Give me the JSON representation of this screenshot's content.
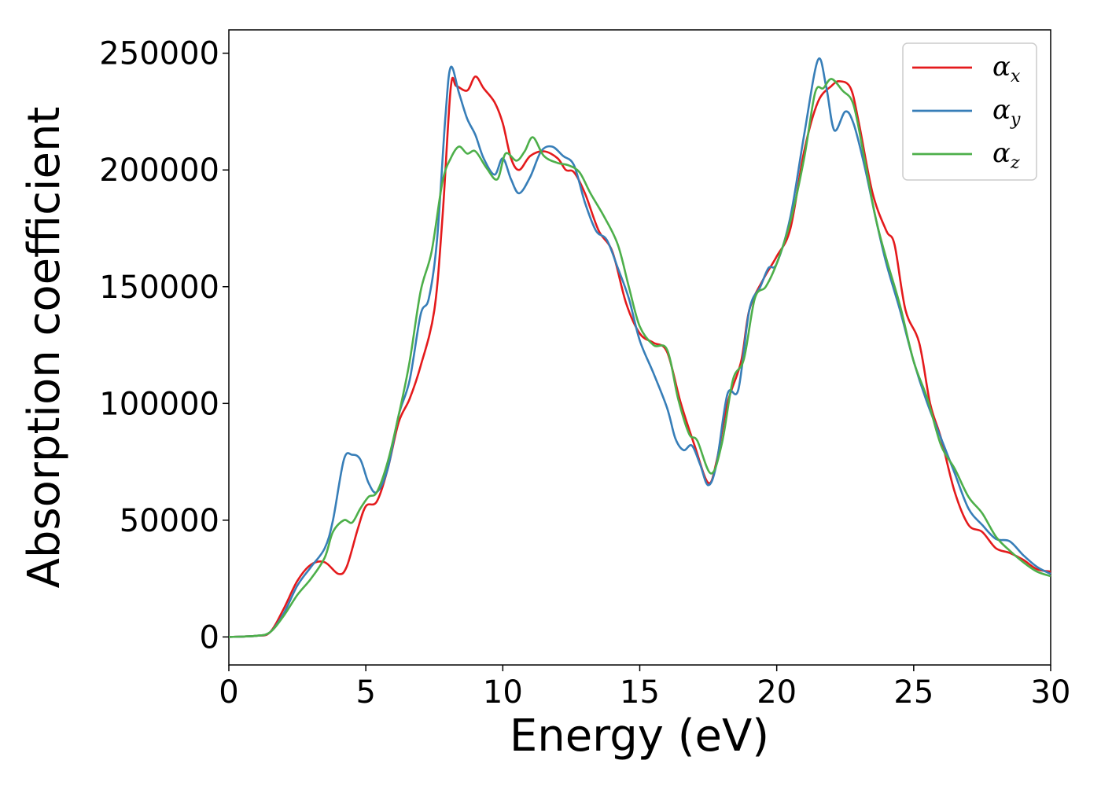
{
  "chart_data": {
    "type": "line",
    "title": "",
    "xlabel": "Energy (eV)",
    "ylabel": "Absorption coefficient",
    "xlim": [
      0,
      30
    ],
    "ylim": [
      -12000,
      260000
    ],
    "xticks": [
      0,
      5,
      10,
      15,
      20,
      25,
      30
    ],
    "xtick_labels": [
      "0",
      "5",
      "10",
      "15",
      "20",
      "25",
      "30"
    ],
    "yticks": [
      0,
      50000,
      100000,
      150000,
      200000,
      250000
    ],
    "ytick_labels": [
      "0",
      "50000",
      "100000",
      "150000",
      "200000",
      "250000"
    ],
    "grid": false,
    "legend_position": "top-right",
    "series": [
      {
        "name": "α",
        "subscript": "x",
        "color": "#e41a1c",
        "points": [
          [
            0,
            0
          ],
          [
            1,
            500
          ],
          [
            1.5,
            2000
          ],
          [
            2,
            12000
          ],
          [
            2.5,
            24000
          ],
          [
            3,
            31000
          ],
          [
            3.5,
            32000
          ],
          [
            4,
            27000
          ],
          [
            4.3,
            30000
          ],
          [
            4.7,
            46000
          ],
          [
            5,
            56000
          ],
          [
            5.4,
            58000
          ],
          [
            5.8,
            72000
          ],
          [
            6.2,
            92000
          ],
          [
            6.6,
            102000
          ],
          [
            7,
            116000
          ],
          [
            7.5,
            140000
          ],
          [
            7.8,
            180000
          ],
          [
            8.1,
            235000
          ],
          [
            8.3,
            236000
          ],
          [
            8.7,
            234000
          ],
          [
            9,
            240000
          ],
          [
            9.3,
            235000
          ],
          [
            9.7,
            229000
          ],
          [
            10,
            220000
          ],
          [
            10.3,
            205000
          ],
          [
            10.6,
            200000
          ],
          [
            11,
            206000
          ],
          [
            11.5,
            208000
          ],
          [
            12,
            205000
          ],
          [
            12.3,
            200000
          ],
          [
            12.6,
            199000
          ],
          [
            13,
            190000
          ],
          [
            13.5,
            174000
          ],
          [
            14,
            165000
          ],
          [
            14.5,
            143000
          ],
          [
            15,
            130000
          ],
          [
            15.5,
            126000
          ],
          [
            16,
            122000
          ],
          [
            16.5,
            100000
          ],
          [
            17,
            82000
          ],
          [
            17.5,
            66000
          ],
          [
            17.8,
            75000
          ],
          [
            18.2,
            100000
          ],
          [
            18.7,
            118000
          ],
          [
            19,
            140000
          ],
          [
            19.5,
            153000
          ],
          [
            20,
            163000
          ],
          [
            20.5,
            175000
          ],
          [
            21,
            208000
          ],
          [
            21.5,
            229000
          ],
          [
            22,
            236000
          ],
          [
            22.3,
            238000
          ],
          [
            22.7,
            235000
          ],
          [
            23,
            220000
          ],
          [
            23.5,
            190000
          ],
          [
            24,
            174000
          ],
          [
            24.3,
            168000
          ],
          [
            24.7,
            140000
          ],
          [
            25.2,
            126000
          ],
          [
            25.6,
            100000
          ],
          [
            26,
            85000
          ],
          [
            26.5,
            62000
          ],
          [
            27,
            48000
          ],
          [
            27.5,
            45000
          ],
          [
            28,
            38000
          ],
          [
            28.5,
            36000
          ],
          [
            29,
            33000
          ],
          [
            29.5,
            29000
          ],
          [
            30,
            28000
          ]
        ]
      },
      {
        "name": "α",
        "subscript": "y",
        "color": "#377eb8",
        "points": [
          [
            0,
            0
          ],
          [
            1,
            500
          ],
          [
            1.5,
            2000
          ],
          [
            2,
            10000
          ],
          [
            2.5,
            22000
          ],
          [
            3,
            30000
          ],
          [
            3.5,
            38000
          ],
          [
            3.8,
            50000
          ],
          [
            4.2,
            76000
          ],
          [
            4.5,
            78000
          ],
          [
            4.8,
            76000
          ],
          [
            5.1,
            66000
          ],
          [
            5.4,
            62000
          ],
          [
            5.8,
            72000
          ],
          [
            6.2,
            95000
          ],
          [
            6.6,
            110000
          ],
          [
            7,
            138000
          ],
          [
            7.3,
            145000
          ],
          [
            7.6,
            170000
          ],
          [
            7.9,
            222000
          ],
          [
            8.1,
            244000
          ],
          [
            8.4,
            233000
          ],
          [
            8.7,
            222000
          ],
          [
            9,
            215000
          ],
          [
            9.3,
            205000
          ],
          [
            9.7,
            198000
          ],
          [
            10,
            205000
          ],
          [
            10.3,
            196000
          ],
          [
            10.6,
            190000
          ],
          [
            11,
            197000
          ],
          [
            11.4,
            208000
          ],
          [
            11.8,
            210000
          ],
          [
            12.2,
            206000
          ],
          [
            12.6,
            202000
          ],
          [
            13,
            186000
          ],
          [
            13.4,
            174000
          ],
          [
            13.8,
            170000
          ],
          [
            14.2,
            158000
          ],
          [
            14.6,
            145000
          ],
          [
            15,
            127000
          ],
          [
            15.5,
            113000
          ],
          [
            16,
            98000
          ],
          [
            16.3,
            85000
          ],
          [
            16.6,
            80000
          ],
          [
            16.9,
            82000
          ],
          [
            17.2,
            74000
          ],
          [
            17.5,
            65000
          ],
          [
            17.8,
            74000
          ],
          [
            18.2,
            104000
          ],
          [
            18.6,
            106000
          ],
          [
            19,
            140000
          ],
          [
            19.4,
            150000
          ],
          [
            19.7,
            158000
          ],
          [
            20,
            160000
          ],
          [
            20.5,
            180000
          ],
          [
            21,
            215000
          ],
          [
            21.5,
            247000
          ],
          [
            21.8,
            236000
          ],
          [
            22.1,
            217000
          ],
          [
            22.5,
            225000
          ],
          [
            22.8,
            220000
          ],
          [
            23.2,
            202000
          ],
          [
            23.6,
            180000
          ],
          [
            24,
            160000
          ],
          [
            24.5,
            140000
          ],
          [
            25,
            118000
          ],
          [
            25.5,
            100000
          ],
          [
            26,
            85000
          ],
          [
            26.5,
            70000
          ],
          [
            27,
            55000
          ],
          [
            27.5,
            48000
          ],
          [
            28,
            42000
          ],
          [
            28.5,
            41000
          ],
          [
            29,
            35000
          ],
          [
            29.5,
            30000
          ],
          [
            30,
            27000
          ]
        ]
      },
      {
        "name": "α",
        "subscript": "z",
        "color": "#4daf4a",
        "points": [
          [
            0,
            0
          ],
          [
            1,
            500
          ],
          [
            1.5,
            2000
          ],
          [
            2,
            9000
          ],
          [
            2.5,
            18000
          ],
          [
            3,
            25000
          ],
          [
            3.5,
            34000
          ],
          [
            3.8,
            45000
          ],
          [
            4.2,
            50000
          ],
          [
            4.5,
            49000
          ],
          [
            4.8,
            55000
          ],
          [
            5.1,
            60000
          ],
          [
            5.4,
            62000
          ],
          [
            5.8,
            75000
          ],
          [
            6.2,
            95000
          ],
          [
            6.6,
            118000
          ],
          [
            7,
            148000
          ],
          [
            7.4,
            165000
          ],
          [
            7.8,
            195000
          ],
          [
            8.1,
            205000
          ],
          [
            8.4,
            210000
          ],
          [
            8.7,
            207000
          ],
          [
            9,
            208000
          ],
          [
            9.4,
            201000
          ],
          [
            9.8,
            196000
          ],
          [
            10.1,
            207000
          ],
          [
            10.5,
            204000
          ],
          [
            10.8,
            208000
          ],
          [
            11.1,
            214000
          ],
          [
            11.5,
            206000
          ],
          [
            12,
            203000
          ],
          [
            12.4,
            202000
          ],
          [
            12.8,
            199000
          ],
          [
            13.2,
            190000
          ],
          [
            13.7,
            180000
          ],
          [
            14.2,
            168000
          ],
          [
            14.6,
            150000
          ],
          [
            15,
            133000
          ],
          [
            15.5,
            125000
          ],
          [
            16,
            123000
          ],
          [
            16.4,
            102000
          ],
          [
            16.8,
            87000
          ],
          [
            17.1,
            84000
          ],
          [
            17.6,
            70000
          ],
          [
            18,
            83000
          ],
          [
            18.4,
            110000
          ],
          [
            18.8,
            119000
          ],
          [
            19.2,
            145000
          ],
          [
            19.6,
            150000
          ],
          [
            20,
            160000
          ],
          [
            20.5,
            178000
          ],
          [
            21,
            205000
          ],
          [
            21.4,
            233000
          ],
          [
            21.7,
            235000
          ],
          [
            22,
            239000
          ],
          [
            22.4,
            234000
          ],
          [
            22.8,
            228000
          ],
          [
            23.2,
            205000
          ],
          [
            23.6,
            180000
          ],
          [
            24,
            162000
          ],
          [
            24.5,
            142000
          ],
          [
            25,
            118000
          ],
          [
            25.5,
            102000
          ],
          [
            26,
            82000
          ],
          [
            26.5,
            72000
          ],
          [
            27,
            60000
          ],
          [
            27.5,
            53000
          ],
          [
            28,
            43000
          ],
          [
            28.5,
            37000
          ],
          [
            29,
            32000
          ],
          [
            29.5,
            28000
          ],
          [
            30,
            26000
          ]
        ]
      }
    ]
  }
}
